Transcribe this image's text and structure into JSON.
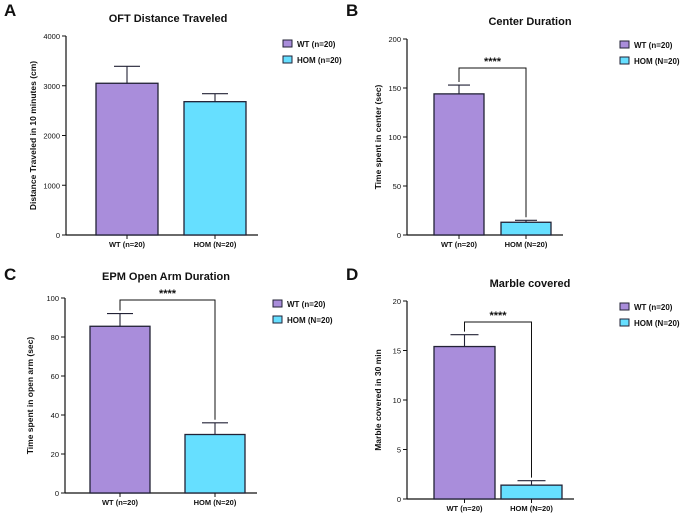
{
  "colors": {
    "wt_fill": "#a98ddb",
    "hom_fill": "#66dfff",
    "border": "#222236",
    "axis": "#111111"
  },
  "chart_data": [
    {
      "panel_label": "A",
      "type": "bar",
      "title": "OFT Distance Traveled",
      "xlabel": "",
      "ylabel": "Distance Traveled in 10 minutes (cm)",
      "categories": [
        "WT (n=20)",
        "HOM (N=20)"
      ],
      "values": [
        3050,
        2680
      ],
      "errors": [
        340,
        160
      ],
      "ylim": [
        0,
        4000
      ],
      "yticks": [
        0,
        1000,
        2000,
        3000,
        4000
      ],
      "legend": [
        "WT (n=20)",
        "HOM (n=20)"
      ],
      "significance": ""
    },
    {
      "panel_label": "B",
      "type": "bar",
      "title": "Center Duration",
      "xlabel": "",
      "ylabel": "Time spent in center (sec)",
      "categories": [
        "WT (n=20)",
        "HOM (N=20)"
      ],
      "values": [
        144,
        13
      ],
      "errors": [
        9,
        2
      ],
      "ylim": [
        0,
        200
      ],
      "yticks": [
        0,
        50,
        100,
        150,
        200
      ],
      "legend": [
        "WT (n=20)",
        "HOM (N=20)"
      ],
      "significance": "****"
    },
    {
      "panel_label": "C",
      "type": "bar",
      "title": "EPM Open Arm Duration",
      "xlabel": "",
      "ylabel": "Time spent in open arm (sec)",
      "categories": [
        "WT (n=20)",
        "HOM (N=20)"
      ],
      "values": [
        85.5,
        30
      ],
      "errors": [
        6.5,
        6
      ],
      "ylim": [
        0,
        100
      ],
      "yticks": [
        0,
        20,
        40,
        60,
        80,
        100
      ],
      "legend": [
        "WT (n=20)",
        "HOM (N=20)"
      ],
      "significance": "****"
    },
    {
      "panel_label": "D",
      "type": "bar",
      "title": "Marble covered",
      "xlabel": "",
      "ylabel": "Marble covered in 30 min",
      "categories": [
        "WT (n=20)",
        "HOM (N=20)"
      ],
      "values": [
        15.4,
        1.4
      ],
      "errors": [
        1.2,
        0.45
      ],
      "ylim": [
        0,
        20
      ],
      "yticks": [
        0,
        5,
        10,
        15,
        20
      ],
      "legend": [
        "WT (n=20)",
        "HOM (N=20)"
      ],
      "significance": "****"
    }
  ]
}
